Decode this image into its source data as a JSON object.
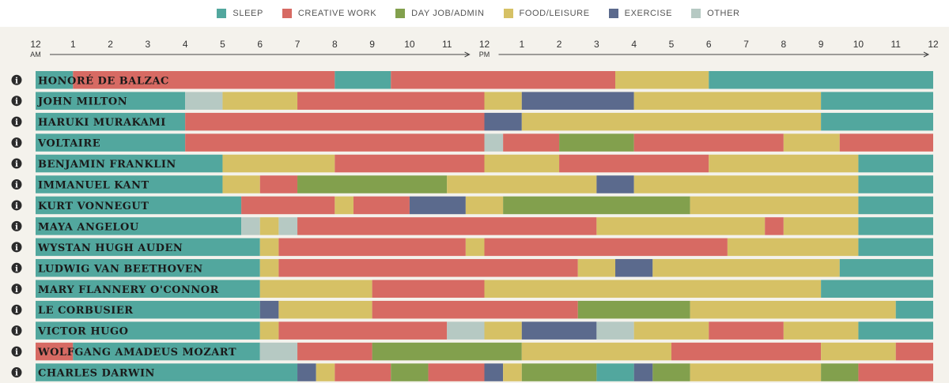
{
  "legend": [
    {
      "key": "sleep",
      "label": "SLEEP",
      "color": "#52a79e"
    },
    {
      "key": "creative",
      "label": "CREATIVE WORK",
      "color": "#d76a63"
    },
    {
      "key": "dayjob",
      "label": "DAY JOB/ADMIN",
      "color": "#82a04d"
    },
    {
      "key": "food",
      "label": "FOOD/LEISURE",
      "color": "#d6c165"
    },
    {
      "key": "exercise",
      "label": "EXERCISE",
      "color": "#5b6a8d"
    },
    {
      "key": "other",
      "label": "OTHER",
      "color": "#b6c9c3"
    }
  ],
  "chart_data": {
    "type": "bar",
    "orientation": "horizontal-stacked-timeline",
    "xlim": [
      0,
      24
    ],
    "x_ticks": [
      {
        "value": 0,
        "label": "12",
        "sub": "AM"
      },
      {
        "value": 1,
        "label": "1"
      },
      {
        "value": 2,
        "label": "2"
      },
      {
        "value": 3,
        "label": "3"
      },
      {
        "value": 4,
        "label": "4"
      },
      {
        "value": 5,
        "label": "5"
      },
      {
        "value": 6,
        "label": "6"
      },
      {
        "value": 7,
        "label": "7"
      },
      {
        "value": 8,
        "label": "8"
      },
      {
        "value": 9,
        "label": "9"
      },
      {
        "value": 10,
        "label": "10"
      },
      {
        "value": 11,
        "label": "11"
      },
      {
        "value": 12,
        "label": "12",
        "sub": "PM"
      },
      {
        "value": 13,
        "label": "1"
      },
      {
        "value": 14,
        "label": "2"
      },
      {
        "value": 15,
        "label": "3"
      },
      {
        "value": 16,
        "label": "4"
      },
      {
        "value": 17,
        "label": "5"
      },
      {
        "value": 18,
        "label": "6"
      },
      {
        "value": 19,
        "label": "7"
      },
      {
        "value": 20,
        "label": "8"
      },
      {
        "value": 21,
        "label": "9"
      },
      {
        "value": 22,
        "label": "10"
      },
      {
        "value": 23,
        "label": "11"
      },
      {
        "value": 24,
        "label": "12"
      }
    ],
    "people": [
      {
        "name": "HONORÉ DE BALZAC",
        "segments": [
          [
            0,
            1,
            "sleep"
          ],
          [
            1,
            8,
            "creative"
          ],
          [
            8,
            9.5,
            "sleep"
          ],
          [
            9.5,
            15.5,
            "creative"
          ],
          [
            15.5,
            18,
            "food"
          ],
          [
            18,
            24,
            "sleep"
          ]
        ]
      },
      {
        "name": "JOHN MILTON",
        "segments": [
          [
            0,
            4,
            "sleep"
          ],
          [
            4,
            5,
            "other"
          ],
          [
            5,
            7,
            "food"
          ],
          [
            7,
            12,
            "creative"
          ],
          [
            12,
            13,
            "food"
          ],
          [
            13,
            16,
            "exercise"
          ],
          [
            16,
            21,
            "food"
          ],
          [
            21,
            24,
            "sleep"
          ]
        ]
      },
      {
        "name": "HARUKI MURAKAMI",
        "segments": [
          [
            0,
            4,
            "sleep"
          ],
          [
            4,
            12,
            "creative"
          ],
          [
            12,
            13,
            "exercise"
          ],
          [
            13,
            21,
            "food"
          ],
          [
            21,
            24,
            "sleep"
          ]
        ]
      },
      {
        "name": "VOLTAIRE",
        "segments": [
          [
            0,
            4,
            "sleep"
          ],
          [
            4,
            12,
            "creative"
          ],
          [
            12,
            12.5,
            "other"
          ],
          [
            12.5,
            14,
            "creative"
          ],
          [
            14,
            16,
            "dayjob"
          ],
          [
            16,
            20,
            "creative"
          ],
          [
            20,
            21.5,
            "food"
          ],
          [
            21.5,
            24,
            "creative"
          ]
        ]
      },
      {
        "name": "BENJAMIN FRANKLIN",
        "segments": [
          [
            0,
            5,
            "sleep"
          ],
          [
            5,
            8,
            "food"
          ],
          [
            8,
            12,
            "creative"
          ],
          [
            12,
            14,
            "food"
          ],
          [
            14,
            18,
            "creative"
          ],
          [
            18,
            22,
            "food"
          ],
          [
            22,
            24,
            "sleep"
          ]
        ]
      },
      {
        "name": "IMMANUEL KANT",
        "segments": [
          [
            0,
            5,
            "sleep"
          ],
          [
            5,
            6,
            "food"
          ],
          [
            6,
            7,
            "creative"
          ],
          [
            7,
            11,
            "dayjob"
          ],
          [
            11,
            15,
            "food"
          ],
          [
            15,
            16,
            "exercise"
          ],
          [
            16,
            22,
            "food"
          ],
          [
            22,
            24,
            "sleep"
          ]
        ]
      },
      {
        "name": "KURT VONNEGUT",
        "segments": [
          [
            0,
            5.5,
            "sleep"
          ],
          [
            5.5,
            8,
            "creative"
          ],
          [
            8,
            8.5,
            "food"
          ],
          [
            8.5,
            10,
            "creative"
          ],
          [
            10,
            11.5,
            "exercise"
          ],
          [
            11.5,
            12.5,
            "food"
          ],
          [
            12.5,
            17.5,
            "dayjob"
          ],
          [
            17.5,
            22,
            "food"
          ],
          [
            22,
            24,
            "sleep"
          ]
        ]
      },
      {
        "name": "MAYA ANGELOU",
        "segments": [
          [
            0,
            5.5,
            "sleep"
          ],
          [
            5.5,
            6,
            "other"
          ],
          [
            6,
            6.5,
            "food"
          ],
          [
            6.5,
            7,
            "other"
          ],
          [
            7,
            15,
            "creative"
          ],
          [
            15,
            19.5,
            "food"
          ],
          [
            19.5,
            20,
            "creative"
          ],
          [
            20,
            22,
            "food"
          ],
          [
            22,
            24,
            "sleep"
          ]
        ]
      },
      {
        "name": "WYSTAN HUGH AUDEN",
        "segments": [
          [
            0,
            6,
            "sleep"
          ],
          [
            6,
            6.5,
            "food"
          ],
          [
            6.5,
            11.5,
            "creative"
          ],
          [
            11.5,
            12,
            "food"
          ],
          [
            12,
            18.5,
            "creative"
          ],
          [
            18.5,
            22,
            "food"
          ],
          [
            22,
            24,
            "sleep"
          ]
        ]
      },
      {
        "name": "LUDWIG VAN BEETHOVEN",
        "segments": [
          [
            0,
            6,
            "sleep"
          ],
          [
            6,
            6.5,
            "food"
          ],
          [
            6.5,
            14.5,
            "creative"
          ],
          [
            14.5,
            15.5,
            "food"
          ],
          [
            15.5,
            16.5,
            "exercise"
          ],
          [
            16.5,
            21.5,
            "food"
          ],
          [
            21.5,
            24,
            "sleep"
          ]
        ]
      },
      {
        "name": "MARY FLANNERY O'CONNOR",
        "segments": [
          [
            0,
            6,
            "sleep"
          ],
          [
            6,
            9,
            "food"
          ],
          [
            9,
            12,
            "creative"
          ],
          [
            12,
            21,
            "food"
          ],
          [
            21,
            24,
            "sleep"
          ]
        ]
      },
      {
        "name": "LE CORBUSIER",
        "segments": [
          [
            0,
            6,
            "sleep"
          ],
          [
            6,
            6.5,
            "exercise"
          ],
          [
            6.5,
            9,
            "food"
          ],
          [
            9,
            14.5,
            "creative"
          ],
          [
            14.5,
            17.5,
            "dayjob"
          ],
          [
            17.5,
            23,
            "food"
          ],
          [
            23,
            24,
            "sleep"
          ]
        ]
      },
      {
        "name": "VICTOR HUGO",
        "segments": [
          [
            0,
            6,
            "sleep"
          ],
          [
            6,
            6.5,
            "food"
          ],
          [
            6.5,
            11,
            "creative"
          ],
          [
            11,
            12,
            "other"
          ],
          [
            12,
            13,
            "food"
          ],
          [
            13,
            15,
            "exercise"
          ],
          [
            15,
            16,
            "other"
          ],
          [
            16,
            18,
            "food"
          ],
          [
            18,
            20,
            "creative"
          ],
          [
            20,
            22,
            "food"
          ],
          [
            22,
            24,
            "sleep"
          ]
        ]
      },
      {
        "name": "WOLFGANG AMADEUS MOZART",
        "segments": [
          [
            0,
            1,
            "creative"
          ],
          [
            1,
            6,
            "sleep"
          ],
          [
            6,
            7,
            "other"
          ],
          [
            7,
            9,
            "creative"
          ],
          [
            9,
            13,
            "dayjob"
          ],
          [
            13,
            17,
            "food"
          ],
          [
            17,
            21,
            "creative"
          ],
          [
            21,
            23,
            "food"
          ],
          [
            23,
            24,
            "creative"
          ]
        ]
      },
      {
        "name": "CHARLES DARWIN",
        "segments": [
          [
            0,
            7,
            "sleep"
          ],
          [
            7,
            7.5,
            "exercise"
          ],
          [
            7.5,
            8,
            "food"
          ],
          [
            8,
            9.5,
            "creative"
          ],
          [
            9.5,
            10.5,
            "dayjob"
          ],
          [
            10.5,
            12,
            "creative"
          ],
          [
            12,
            12.5,
            "exercise"
          ],
          [
            12.5,
            13,
            "food"
          ],
          [
            13,
            15,
            "dayjob"
          ],
          [
            15,
            16,
            "sleep"
          ],
          [
            16,
            16.5,
            "exercise"
          ],
          [
            16.5,
            17.5,
            "dayjob"
          ],
          [
            17.5,
            21,
            "food"
          ],
          [
            21,
            22,
            "dayjob"
          ],
          [
            22,
            24,
            "creative"
          ]
        ]
      }
    ]
  },
  "info_icon_glyph": "i"
}
